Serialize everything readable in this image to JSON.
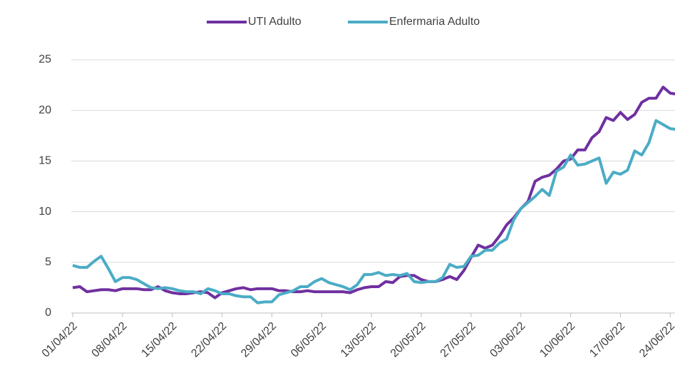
{
  "chart_data": {
    "type": "line",
    "categories": [
      "01/04/22",
      null,
      null,
      null,
      null,
      null,
      null,
      "08/04/22",
      null,
      null,
      null,
      null,
      null,
      null,
      "15/04/22",
      null,
      null,
      null,
      null,
      null,
      null,
      "22/04/22",
      null,
      null,
      null,
      null,
      null,
      null,
      "29/04/22",
      null,
      null,
      null,
      null,
      null,
      null,
      "06/05/22",
      null,
      null,
      null,
      null,
      null,
      null,
      "13/05/22",
      null,
      null,
      null,
      null,
      null,
      null,
      "20/05/22",
      null,
      null,
      null,
      null,
      null,
      null,
      "27/05/22",
      null,
      null,
      null,
      null,
      null,
      null,
      "03/06/22",
      null,
      null,
      null,
      null,
      null,
      null,
      "10/06/22",
      null,
      null,
      null,
      null,
      null,
      null,
      "17/06/22",
      null,
      null,
      null,
      null,
      null,
      null,
      "24/06/22",
      null
    ],
    "series": [
      {
        "name": "UTI Adulto",
        "color": "#7030a0",
        "values": [
          2.5,
          2.6,
          2.1,
          2.2,
          2.3,
          2.3,
          2.2,
          2.4,
          2.4,
          2.4,
          2.3,
          2.3,
          2.6,
          2.2,
          2.0,
          1.9,
          1.9,
          2.0,
          2.1,
          2.0,
          1.5,
          2.0,
          2.2,
          2.4,
          2.5,
          2.3,
          2.4,
          2.4,
          2.4,
          2.2,
          2.2,
          2.1,
          2.1,
          2.2,
          2.1,
          2.1,
          2.1,
          2.1,
          2.1,
          2.0,
          2.3,
          2.5,
          2.6,
          2.6,
          3.1,
          3.0,
          3.6,
          3.7,
          3.7,
          3.3,
          3.1,
          3.1,
          3.3,
          3.6,
          3.3,
          4.2,
          5.5,
          6.7,
          6.4,
          6.7,
          7.6,
          8.7,
          9.4,
          10.3,
          11.0,
          13.0,
          13.4,
          13.6,
          14.2,
          15.0,
          15.2,
          16.1,
          16.1,
          17.3,
          17.9,
          19.3,
          19.0,
          19.8,
          19.1,
          19.6,
          20.8,
          21.2,
          21.2,
          22.3,
          21.7,
          21.6
        ]
      },
      {
        "name": "Enfermaria Adulto",
        "color": "#4bacc6",
        "values": [
          4.7,
          4.5,
          4.5,
          5.1,
          5.6,
          4.4,
          3.1,
          3.5,
          3.5,
          3.3,
          2.9,
          2.5,
          2.4,
          2.5,
          2.4,
          2.2,
          2.1,
          2.1,
          1.9,
          2.4,
          2.2,
          1.9,
          1.9,
          1.7,
          1.6,
          1.6,
          1.0,
          1.1,
          1.1,
          1.8,
          2.0,
          2.2,
          2.6,
          2.6,
          3.1,
          3.4,
          3.0,
          2.8,
          2.6,
          2.3,
          2.8,
          3.8,
          3.8,
          4.0,
          3.7,
          3.8,
          3.7,
          3.9,
          3.1,
          3.0,
          3.1,
          3.1,
          3.5,
          4.8,
          4.5,
          4.6,
          5.6,
          5.7,
          6.2,
          6.2,
          6.9,
          7.3,
          9.2,
          10.3,
          10.9,
          11.5,
          12.2,
          11.6,
          14.0,
          14.4,
          15.6,
          14.6,
          14.7,
          15.0,
          15.3,
          12.8,
          13.9,
          13.7,
          14.1,
          16.0,
          15.6,
          16.8,
          19.0,
          18.6,
          18.2,
          18.1
        ]
      }
    ],
    "ylim": [
      0,
      25
    ],
    "yticks": [
      0,
      5,
      10,
      15,
      20,
      25
    ],
    "grid": true,
    "legend": "top"
  }
}
